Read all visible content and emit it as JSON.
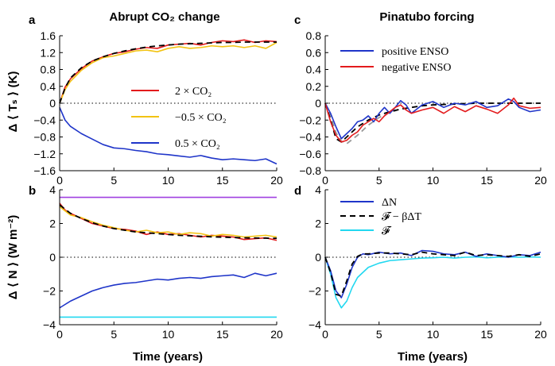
{
  "figure": {
    "x_axis_title": "Time (years)",
    "y_axis_title_top": "Δ ⟨ Tₛ ⟩ (K)",
    "y_axis_title_bottom": "Δ ⟨ N ⟩ (W m⁻²)"
  },
  "chart_data": [
    {
      "id": "a",
      "letter": "a",
      "type": "line",
      "title": "Abrupt CO₂ change",
      "xlim": [
        0,
        20
      ],
      "ylim": [
        -1.6,
        1.6
      ],
      "xticks": [
        0,
        5,
        10,
        15,
        20
      ],
      "yticks": [
        1.6,
        1.2,
        0.8,
        0.4,
        0,
        -0.4,
        -0.8,
        -1.2,
        -1.6
      ],
      "zero_line": "dotted",
      "legend_placement": "center-right",
      "series": [
        {
          "name": "2 × CO₂",
          "color": "#e31a1c",
          "style": "solid",
          "x": [
            0,
            0.5,
            1,
            2,
            3,
            4,
            5,
            6,
            7,
            8,
            9,
            10,
            11,
            12,
            13,
            14,
            15,
            16,
            17,
            18,
            19,
            20
          ],
          "y": [
            0,
            0.38,
            0.58,
            0.82,
            1.0,
            1.1,
            1.18,
            1.22,
            1.28,
            1.32,
            1.3,
            1.38,
            1.4,
            1.42,
            1.38,
            1.44,
            1.48,
            1.46,
            1.5,
            1.44,
            1.48,
            1.46
          ]
        },
        {
          "name": "−0.5 × CO₂",
          "color": "#f2c313",
          "style": "solid",
          "x": [
            0,
            0.5,
            1,
            2,
            3,
            4,
            5,
            6,
            7,
            8,
            9,
            10,
            11,
            12,
            13,
            14,
            15,
            16,
            17,
            18,
            19,
            20
          ],
          "y": [
            0,
            0.32,
            0.52,
            0.78,
            0.96,
            1.08,
            1.12,
            1.18,
            1.24,
            1.26,
            1.22,
            1.3,
            1.34,
            1.3,
            1.32,
            1.36,
            1.34,
            1.36,
            1.32,
            1.36,
            1.3,
            1.44
          ]
        },
        {
          "name": "0.5 × CO₂",
          "color": "#1f35c9",
          "style": "solid",
          "x": [
            0,
            0.5,
            1,
            2,
            3,
            4,
            5,
            6,
            7,
            8,
            9,
            10,
            11,
            12,
            13,
            14,
            15,
            16,
            17,
            18,
            19,
            20
          ],
          "y": [
            -0.1,
            -0.4,
            -0.55,
            -0.72,
            -0.85,
            -0.98,
            -1.06,
            -1.08,
            -1.12,
            -1.15,
            -1.2,
            -1.22,
            -1.25,
            -1.28,
            -1.24,
            -1.3,
            -1.34,
            -1.32,
            -1.34,
            -1.36,
            -1.32,
            -1.44
          ]
        },
        {
          "name": "",
          "color": "#000000",
          "style": "dashed",
          "x": [
            0,
            0.5,
            1,
            2,
            3,
            4,
            5,
            6,
            7,
            8,
            9,
            10,
            11,
            12,
            13,
            14,
            15,
            16,
            17,
            18,
            19,
            20
          ],
          "y": [
            0,
            0.36,
            0.6,
            0.84,
            1.0,
            1.1,
            1.18,
            1.24,
            1.29,
            1.33,
            1.36,
            1.38,
            1.4,
            1.41,
            1.42,
            1.43,
            1.44,
            1.44,
            1.45,
            1.45,
            1.45,
            1.45
          ]
        }
      ],
      "legend": [
        {
          "label": "2 × CO₂",
          "color": "#e31a1c"
        },
        {
          "label": "−0.5 × CO₂",
          "color": "#f2c313"
        },
        {
          "label": "0.5 × CO₂",
          "color": "#1f35c9"
        }
      ]
    },
    {
      "id": "b",
      "letter": "b",
      "type": "line",
      "title": "",
      "xlim": [
        0,
        20
      ],
      "ylim": [
        -4,
        4
      ],
      "xticks": [
        0,
        5,
        10,
        15,
        20
      ],
      "yticks": [
        4,
        2,
        0,
        -2,
        -4
      ],
      "zero_line": "dotted",
      "series": [
        {
          "name": "",
          "color": "#a040e0",
          "style": "solid",
          "x": [
            0,
            20
          ],
          "y": [
            3.55,
            3.55
          ]
        },
        {
          "name": "",
          "color": "#22d8f0",
          "style": "solid",
          "x": [
            0,
            20
          ],
          "y": [
            -3.55,
            -3.55
          ]
        },
        {
          "name": "",
          "color": "#e31a1c",
          "style": "solid",
          "x": [
            0,
            0.5,
            1,
            2,
            3,
            4,
            5,
            6,
            7,
            8,
            9,
            10,
            11,
            12,
            13,
            14,
            15,
            16,
            17,
            18,
            19,
            20
          ],
          "y": [
            3.2,
            2.8,
            2.6,
            2.3,
            2.0,
            1.85,
            1.7,
            1.65,
            1.55,
            1.35,
            1.5,
            1.35,
            1.4,
            1.3,
            1.2,
            1.3,
            1.25,
            1.2,
            1.05,
            1.1,
            1.15,
            1.0
          ]
        },
        {
          "name": "",
          "color": "#f2c313",
          "style": "solid",
          "x": [
            0,
            0.5,
            1,
            2,
            3,
            4,
            5,
            6,
            7,
            8,
            9,
            10,
            11,
            12,
            13,
            14,
            15,
            16,
            17,
            18,
            19,
            20
          ],
          "y": [
            3.0,
            2.75,
            2.5,
            2.35,
            2.1,
            1.9,
            1.75,
            1.6,
            1.5,
            1.6,
            1.45,
            1.5,
            1.35,
            1.45,
            1.4,
            1.25,
            1.35,
            1.3,
            1.2,
            1.25,
            1.3,
            1.2
          ]
        },
        {
          "name": "",
          "color": "#1f35c9",
          "style": "solid",
          "x": [
            0,
            0.5,
            1,
            2,
            3,
            4,
            5,
            6,
            7,
            8,
            9,
            10,
            11,
            12,
            13,
            14,
            15,
            16,
            17,
            18,
            19,
            20
          ],
          "y": [
            -3.0,
            -2.8,
            -2.6,
            -2.3,
            -2.0,
            -1.8,
            -1.65,
            -1.55,
            -1.5,
            -1.4,
            -1.3,
            -1.35,
            -1.25,
            -1.2,
            -1.25,
            -1.15,
            -1.1,
            -1.05,
            -1.2,
            -0.95,
            -1.1,
            -0.95
          ]
        },
        {
          "name": "",
          "color": "#000000",
          "style": "dashed",
          "x": [
            0,
            1,
            2,
            3,
            4,
            5,
            6,
            7,
            8,
            9,
            10,
            11,
            12,
            13,
            14,
            15,
            16,
            17,
            18,
            19,
            20
          ],
          "y": [
            3.1,
            2.6,
            2.3,
            2.05,
            1.85,
            1.7,
            1.6,
            1.5,
            1.45,
            1.4,
            1.35,
            1.3,
            1.27,
            1.24,
            1.21,
            1.19,
            1.17,
            1.15,
            1.14,
            1.13,
            1.12
          ]
        }
      ]
    },
    {
      "id": "c",
      "letter": "c",
      "type": "line",
      "title": "Pinatubo forcing",
      "xlim": [
        0,
        20
      ],
      "ylim": [
        -0.8,
        0.8
      ],
      "xticks": [
        0,
        5,
        10,
        15,
        20
      ],
      "yticks": [
        0.8,
        0.6,
        0.4,
        0.2,
        0,
        -0.2,
        -0.4,
        -0.6,
        -0.8
      ],
      "zero_line": "dotted",
      "legend_placement": "top-right",
      "series": [
        {
          "name": "",
          "color": "#999999",
          "style": "dashed",
          "x": [
            0,
            0.5,
            1,
            1.5,
            2,
            3,
            4,
            5,
            6,
            7,
            8,
            9,
            10,
            12,
            14,
            16,
            18,
            20
          ],
          "y": [
            0,
            -0.15,
            -0.35,
            -0.45,
            -0.48,
            -0.38,
            -0.26,
            -0.17,
            -0.11,
            -0.07,
            -0.05,
            -0.03,
            -0.02,
            -0.01,
            0,
            0,
            0,
            0
          ]
        },
        {
          "name": "",
          "color": "#000000",
          "style": "dashed",
          "x": [
            0,
            0.5,
            1,
            1.5,
            2,
            3,
            4,
            5,
            6,
            7,
            8,
            9,
            10,
            12,
            14,
            16,
            18,
            20
          ],
          "y": [
            0,
            -0.2,
            -0.42,
            -0.46,
            -0.4,
            -0.28,
            -0.2,
            -0.14,
            -0.1,
            -0.07,
            -0.05,
            -0.03,
            -0.02,
            -0.01,
            0,
            0,
            0,
            0
          ]
        },
        {
          "name": "positive ENSO",
          "color": "#1f35c9",
          "style": "solid",
          "x": [
            0,
            0.5,
            1,
            1.5,
            2,
            2.5,
            3,
            3.5,
            4,
            4.5,
            5,
            5.5,
            6,
            6.5,
            7,
            7.5,
            8,
            9,
            10,
            11,
            12,
            13,
            14,
            15,
            16,
            17,
            17.5,
            18,
            19,
            20
          ],
          "y": [
            0,
            -0.12,
            -0.28,
            -0.42,
            -0.36,
            -0.3,
            -0.22,
            -0.2,
            -0.15,
            -0.22,
            -0.12,
            -0.05,
            -0.12,
            -0.05,
            0.03,
            -0.02,
            -0.12,
            -0.02,
            0.02,
            -0.05,
            0.0,
            -0.02,
            0.02,
            -0.05,
            -0.03,
            0.05,
            0.02,
            -0.05,
            -0.1,
            -0.08
          ]
        },
        {
          "name": "negative ENSO",
          "color": "#e31a1c",
          "style": "solid",
          "x": [
            0,
            0.5,
            1,
            1.5,
            2,
            2.5,
            3,
            3.5,
            4,
            4.5,
            5,
            5.5,
            6,
            6.5,
            7,
            7.5,
            8,
            9,
            10,
            11,
            12,
            13,
            14,
            15,
            16,
            17,
            17.5,
            18,
            19,
            20
          ],
          "y": [
            0,
            -0.22,
            -0.38,
            -0.46,
            -0.44,
            -0.38,
            -0.34,
            -0.26,
            -0.22,
            -0.18,
            -0.22,
            -0.15,
            -0.1,
            -0.05,
            -0.02,
            -0.08,
            -0.12,
            -0.08,
            -0.05,
            -0.12,
            -0.04,
            -0.1,
            -0.03,
            -0.07,
            -0.12,
            -0.02,
            0.06,
            -0.03,
            -0.06,
            -0.05
          ]
        }
      ],
      "legend": [
        {
          "label": "positive ENSO",
          "color": "#1f35c9"
        },
        {
          "label": "negative ENSO",
          "color": "#e31a1c"
        }
      ]
    },
    {
      "id": "d",
      "letter": "d",
      "type": "line",
      "title": "",
      "xlim": [
        0,
        20
      ],
      "ylim": [
        -4,
        4
      ],
      "xticks": [
        0,
        5,
        10,
        15,
        20
      ],
      "yticks": [
        4,
        2,
        0,
        -2,
        -4
      ],
      "zero_line": "dotted",
      "legend_placement": "top-right",
      "series": [
        {
          "name": "𝓕",
          "color": "#22d8f0",
          "style": "solid",
          "x": [
            0,
            0.5,
            1,
            1.5,
            2,
            2.5,
            3,
            4,
            5,
            6,
            7,
            8,
            9,
            10,
            11,
            12,
            13,
            14,
            15,
            16,
            17,
            18,
            19,
            20
          ],
          "y": [
            0,
            -1.0,
            -2.4,
            -3.0,
            -2.6,
            -1.8,
            -1.2,
            -0.6,
            -0.35,
            -0.2,
            -0.15,
            -0.1,
            -0.05,
            -0.03,
            0.0,
            -0.05,
            0.0,
            0.02,
            -0.03,
            0.0,
            0.02,
            0.0,
            0.02,
            0.0
          ]
        },
        {
          "name": "ΔN",
          "color": "#1f35c9",
          "style": "solid",
          "x": [
            0,
            0.5,
            1,
            1.5,
            2,
            2.5,
            3,
            3.5,
            4,
            5,
            6,
            7,
            8,
            9,
            10,
            11,
            12,
            13,
            14,
            15,
            16,
            17,
            18,
            19,
            20
          ],
          "y": [
            0,
            -0.8,
            -2.0,
            -2.4,
            -1.6,
            -0.6,
            0.0,
            0.2,
            0.15,
            0.3,
            0.2,
            0.25,
            0.1,
            0.4,
            0.35,
            0.2,
            0.15,
            0.3,
            0.05,
            0.2,
            0.1,
            0.0,
            0.15,
            0.1,
            0.3
          ]
        },
        {
          "name": "𝓕 − βΔT",
          "color": "#000000",
          "style": "dashed",
          "x": [
            0,
            0.5,
            1,
            1.5,
            2,
            2.5,
            3,
            3.5,
            4,
            5,
            6,
            7,
            8,
            9,
            10,
            11,
            12,
            13,
            14,
            15,
            16,
            17,
            18,
            19,
            20
          ],
          "y": [
            0,
            -0.9,
            -2.2,
            -2.3,
            -1.4,
            -0.4,
            0.05,
            0.2,
            0.2,
            0.25,
            0.25,
            0.2,
            0.15,
            0.3,
            0.2,
            0.15,
            0.1,
            0.3,
            0.1,
            0.15,
            0.1,
            0.05,
            0.15,
            0.05,
            0.2
          ]
        }
      ],
      "legend": [
        {
          "label": "ΔN",
          "color": "#1f35c9",
          "style": "solid"
        },
        {
          "label": "𝓕 − βΔT",
          "color": "#000000",
          "style": "dashed"
        },
        {
          "label": "𝓕",
          "color": "#22d8f0",
          "style": "solid"
        }
      ]
    }
  ]
}
